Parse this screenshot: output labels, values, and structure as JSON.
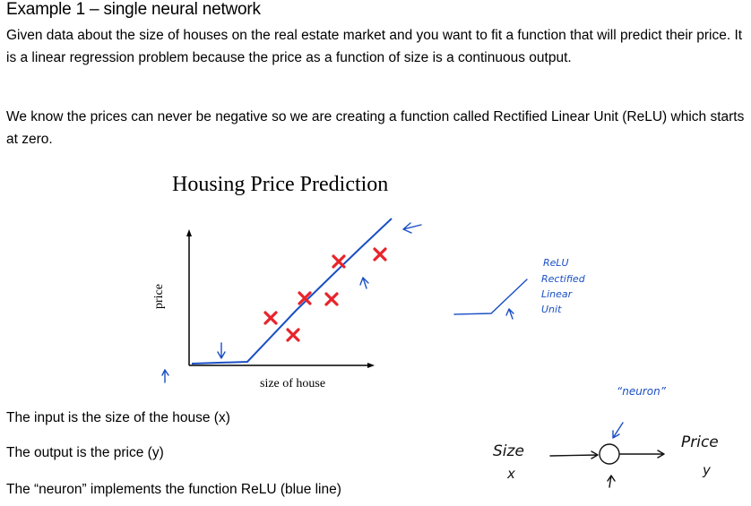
{
  "heading": "Example 1 – single neural network",
  "paragraph1": "Given data about the size of houses on the real estate market and you want to fit a function that will predict their price. It is a linear regression problem because the price as a function of size is a continuous output.",
  "paragraph2": "We know the prices can never be negative so we are creating a function called Rectified Linear Unit (ReLU) which starts at zero.",
  "figure": {
    "title": "Housing Price Prediction",
    "ylabel": "price",
    "xlabel": "size of house"
  },
  "relu_notes": [
    "ReLU",
    "Rectified",
    "Linear",
    "Unit"
  ],
  "neuron_quote": "“neuron”",
  "neuron_diagram": {
    "input_label": "Size",
    "input_var": "x",
    "output_label": "Price",
    "output_var": "y"
  },
  "bullets": [
    "The input is the size of the house (x)",
    "The output is the price (y)",
    "The “neuron” implements the function ReLU (blue line)"
  ],
  "colors": {
    "handwriting": "#1a4fc4",
    "marker": "#e8232a"
  }
}
